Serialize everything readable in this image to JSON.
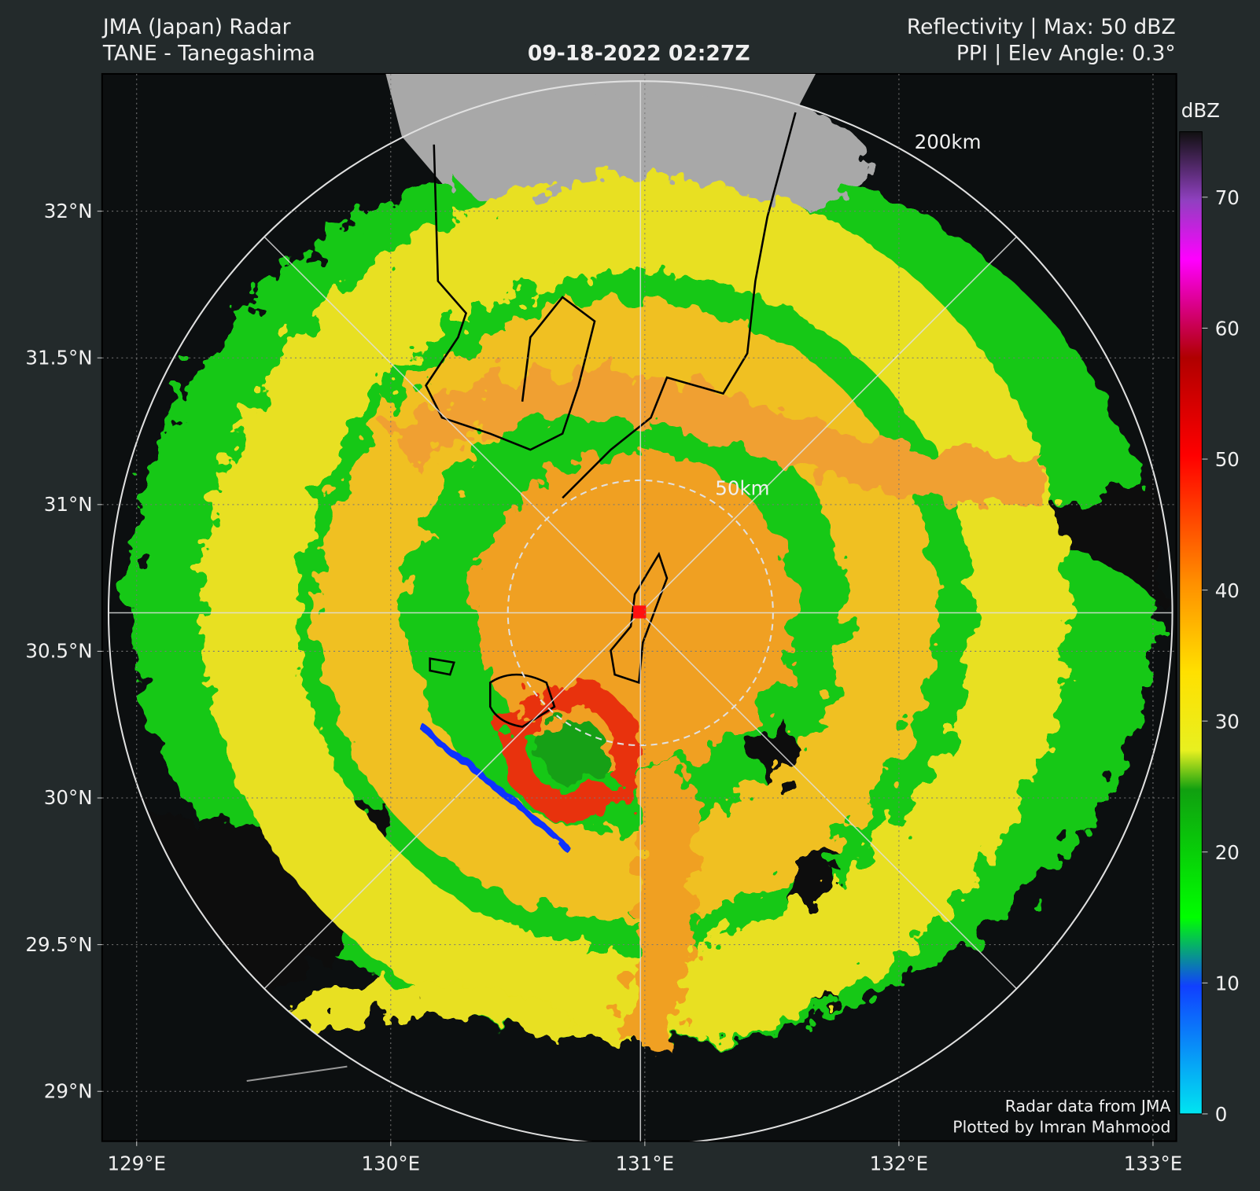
{
  "header": {
    "title_left_1": "JMA (Japan) Radar",
    "title_left_2": "TANE - Tanegashima",
    "timestamp": "09-18-2022 02:27Z",
    "title_right_1": "Reflectivity | Max: 50 dBZ",
    "title_right_2": "PPI | Elev Angle: 0.3°"
  },
  "map": {
    "xlim": [
      128.864,
      133.092
    ],
    "xticks": [
      {
        "value": 129,
        "label": "129°E"
      },
      {
        "value": 130,
        "label": "130°E"
      },
      {
        "value": 131,
        "label": "131°E"
      },
      {
        "value": 132,
        "label": "132°E"
      },
      {
        "value": 133,
        "label": "133°E"
      }
    ],
    "ylim": [
      28.83,
      32.468
    ],
    "yticks": [
      {
        "value": 29,
        "label": "29°N"
      },
      {
        "value": 29.5,
        "label": "29.5°N"
      },
      {
        "value": 30,
        "label": "30°N"
      },
      {
        "value": 30.5,
        "label": "30.5°N"
      },
      {
        "value": 31,
        "label": "31°N"
      },
      {
        "value": 31.5,
        "label": "31.5°N"
      },
      {
        "value": 32,
        "label": "32°N"
      }
    ],
    "range_labels": [
      "200km",
      "50km"
    ],
    "credits": [
      "Radar data from JMA",
      "Plotted by Imran Mahmood"
    ]
  },
  "colorbar": {
    "label": "dBZ",
    "ylim": [
      0,
      75
    ],
    "yticks": [
      0,
      10,
      20,
      30,
      40,
      50,
      60,
      70
    ]
  }
}
